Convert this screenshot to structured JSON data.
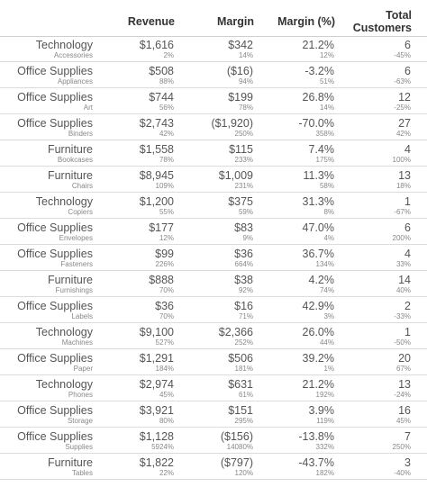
{
  "chart_data": {
    "type": "table",
    "columns": [
      "",
      "Revenue",
      "Margin",
      "Margin (%)",
      "Total\nCustomers"
    ],
    "header": {
      "revenue": "Revenue",
      "margin": "Margin",
      "margin_pct": "Margin (%)",
      "customers_line1": "Total",
      "customers_line2": "Customers"
    },
    "rows": [
      {
        "category": "Technology",
        "subcategory": "Accessories",
        "revenue": "$1,616",
        "revenue_sub": "2%",
        "margin": "$342",
        "margin_sub": "14%",
        "margin_pct": "21.2%",
        "margin_pct_sub": "12%",
        "customers": "6",
        "customers_sub": "-45%"
      },
      {
        "category": "Office Supplies",
        "subcategory": "Appliances",
        "revenue": "$508",
        "revenue_sub": "88%",
        "margin": "($16)",
        "margin_sub": "94%",
        "margin_pct": "-3.2%",
        "margin_pct_sub": "51%",
        "customers": "6",
        "customers_sub": "-63%"
      },
      {
        "category": "Office Supplies",
        "subcategory": "Art",
        "revenue": "$744",
        "revenue_sub": "56%",
        "margin": "$199",
        "margin_sub": "78%",
        "margin_pct": "26.8%",
        "margin_pct_sub": "14%",
        "customers": "12",
        "customers_sub": "-25%"
      },
      {
        "category": "Office Supplies",
        "subcategory": "Binders",
        "revenue": "$2,743",
        "revenue_sub": "42%",
        "margin": "($1,920)",
        "margin_sub": "250%",
        "margin_pct": "-70.0%",
        "margin_pct_sub": "358%",
        "customers": "27",
        "customers_sub": "42%"
      },
      {
        "category": "Furniture",
        "subcategory": "Bookcases",
        "revenue": "$1,558",
        "revenue_sub": "78%",
        "margin": "$115",
        "margin_sub": "233%",
        "margin_pct": "7.4%",
        "margin_pct_sub": "175%",
        "customers": "4",
        "customers_sub": "100%"
      },
      {
        "category": "Furniture",
        "subcategory": "Chairs",
        "revenue": "$8,945",
        "revenue_sub": "109%",
        "margin": "$1,009",
        "margin_sub": "231%",
        "margin_pct": "11.3%",
        "margin_pct_sub": "58%",
        "customers": "13",
        "customers_sub": "18%"
      },
      {
        "category": "Technology",
        "subcategory": "Copiers",
        "revenue": "$1,200",
        "revenue_sub": "55%",
        "margin": "$375",
        "margin_sub": "59%",
        "margin_pct": "31.3%",
        "margin_pct_sub": "8%",
        "customers": "1",
        "customers_sub": "-67%"
      },
      {
        "category": "Office Supplies",
        "subcategory": "Envelopes",
        "revenue": "$177",
        "revenue_sub": "12%",
        "margin": "$83",
        "margin_sub": "9%",
        "margin_pct": "47.0%",
        "margin_pct_sub": "4%",
        "customers": "6",
        "customers_sub": "200%"
      },
      {
        "category": "Office Supplies",
        "subcategory": "Fasteners",
        "revenue": "$99",
        "revenue_sub": "226%",
        "margin": "$36",
        "margin_sub": "664%",
        "margin_pct": "36.7%",
        "margin_pct_sub": "134%",
        "customers": "4",
        "customers_sub": "33%"
      },
      {
        "category": "Furniture",
        "subcategory": "Furnishings",
        "revenue": "$888",
        "revenue_sub": "70%",
        "margin": "$38",
        "margin_sub": "92%",
        "margin_pct": "4.2%",
        "margin_pct_sub": "74%",
        "customers": "14",
        "customers_sub": "40%"
      },
      {
        "category": "Office Supplies",
        "subcategory": "Labels",
        "revenue": "$36",
        "revenue_sub": "70%",
        "margin": "$16",
        "margin_sub": "71%",
        "margin_pct": "42.9%",
        "margin_pct_sub": "3%",
        "customers": "2",
        "customers_sub": "-33%"
      },
      {
        "category": "Technology",
        "subcategory": "Machines",
        "revenue": "$9,100",
        "revenue_sub": "527%",
        "margin": "$2,366",
        "margin_sub": "252%",
        "margin_pct": "26.0%",
        "margin_pct_sub": "44%",
        "customers": "1",
        "customers_sub": "-50%"
      },
      {
        "category": "Office Supplies",
        "subcategory": "Paper",
        "revenue": "$1,291",
        "revenue_sub": "184%",
        "margin": "$506",
        "margin_sub": "181%",
        "margin_pct": "39.2%",
        "margin_pct_sub": "1%",
        "customers": "20",
        "customers_sub": "67%"
      },
      {
        "category": "Technology",
        "subcategory": "Phones",
        "revenue": "$2,974",
        "revenue_sub": "45%",
        "margin": "$631",
        "margin_sub": "61%",
        "margin_pct": "21.2%",
        "margin_pct_sub": "192%",
        "customers": "13",
        "customers_sub": "-24%"
      },
      {
        "category": "Office Supplies",
        "subcategory": "Storage",
        "revenue": "$3,921",
        "revenue_sub": "80%",
        "margin": "$151",
        "margin_sub": "295%",
        "margin_pct": "3.9%",
        "margin_pct_sub": "119%",
        "customers": "16",
        "customers_sub": "45%"
      },
      {
        "category": "Office Supplies",
        "subcategory": "Supplies",
        "revenue": "$1,128",
        "revenue_sub": "5924%",
        "margin": "($156)",
        "margin_sub": "14080%",
        "margin_pct": "-13.8%",
        "margin_pct_sub": "332%",
        "customers": "7",
        "customers_sub": "250%"
      },
      {
        "category": "Furniture",
        "subcategory": "Tables",
        "revenue": "$1,822",
        "revenue_sub": "22%",
        "margin": "($797)",
        "margin_sub": "120%",
        "margin_pct": "-43.7%",
        "margin_pct_sub": "182%",
        "customers": "3",
        "customers_sub": "-40%"
      }
    ]
  }
}
